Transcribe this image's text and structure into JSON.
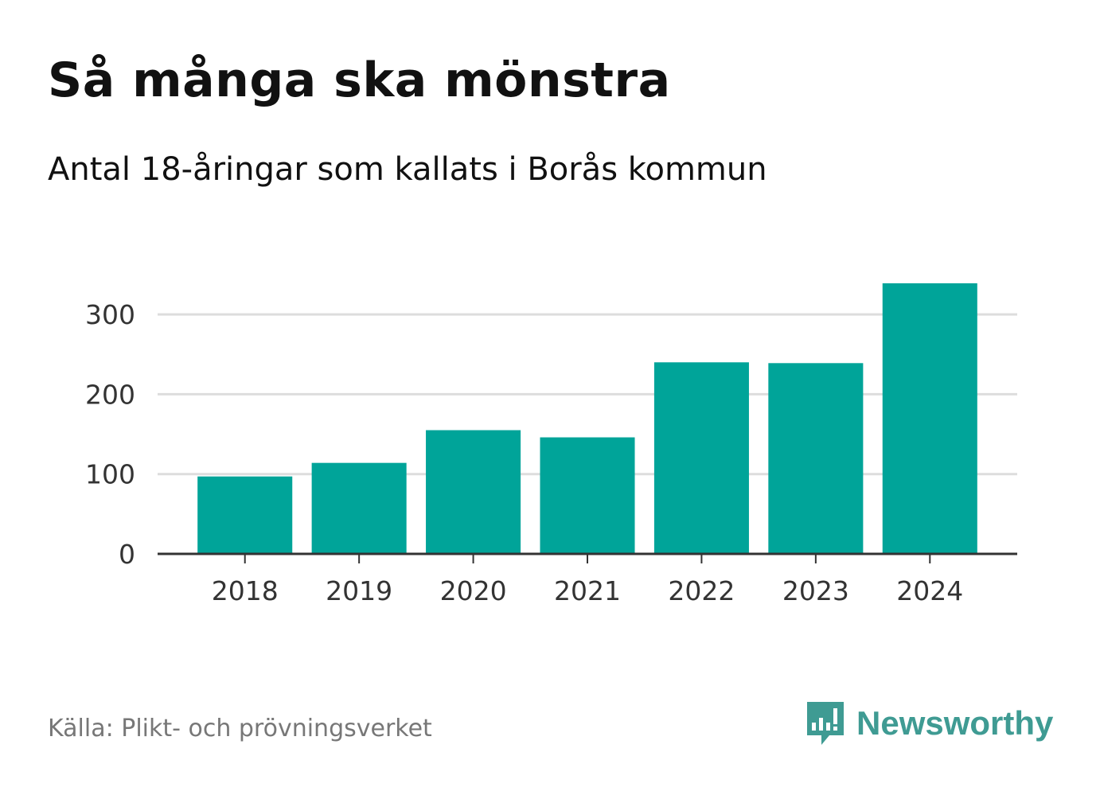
{
  "title": "Så många ska mönstra",
  "subtitle": "Antal 18-åringar som kallats i Borås kommun",
  "source": "Källa: Plikt- och prövningsverket",
  "brand": {
    "name": "Newsworthy",
    "icon": "newsworthy-chart-bubble-icon",
    "color": "#3f9b93"
  },
  "chart_data": {
    "type": "bar",
    "categories": [
      "2018",
      "2019",
      "2020",
      "2021",
      "2022",
      "2023",
      "2024"
    ],
    "values": [
      97,
      114,
      155,
      146,
      240,
      239,
      339
    ],
    "ylim": [
      0,
      340
    ],
    "yticks": [
      "0",
      "100",
      "200",
      "300"
    ],
    "xlabel": "",
    "ylabel": "",
    "grid": true,
    "bar_color": "#00a499",
    "grid_color": "#dddddd",
    "axis_color": "#333333"
  }
}
